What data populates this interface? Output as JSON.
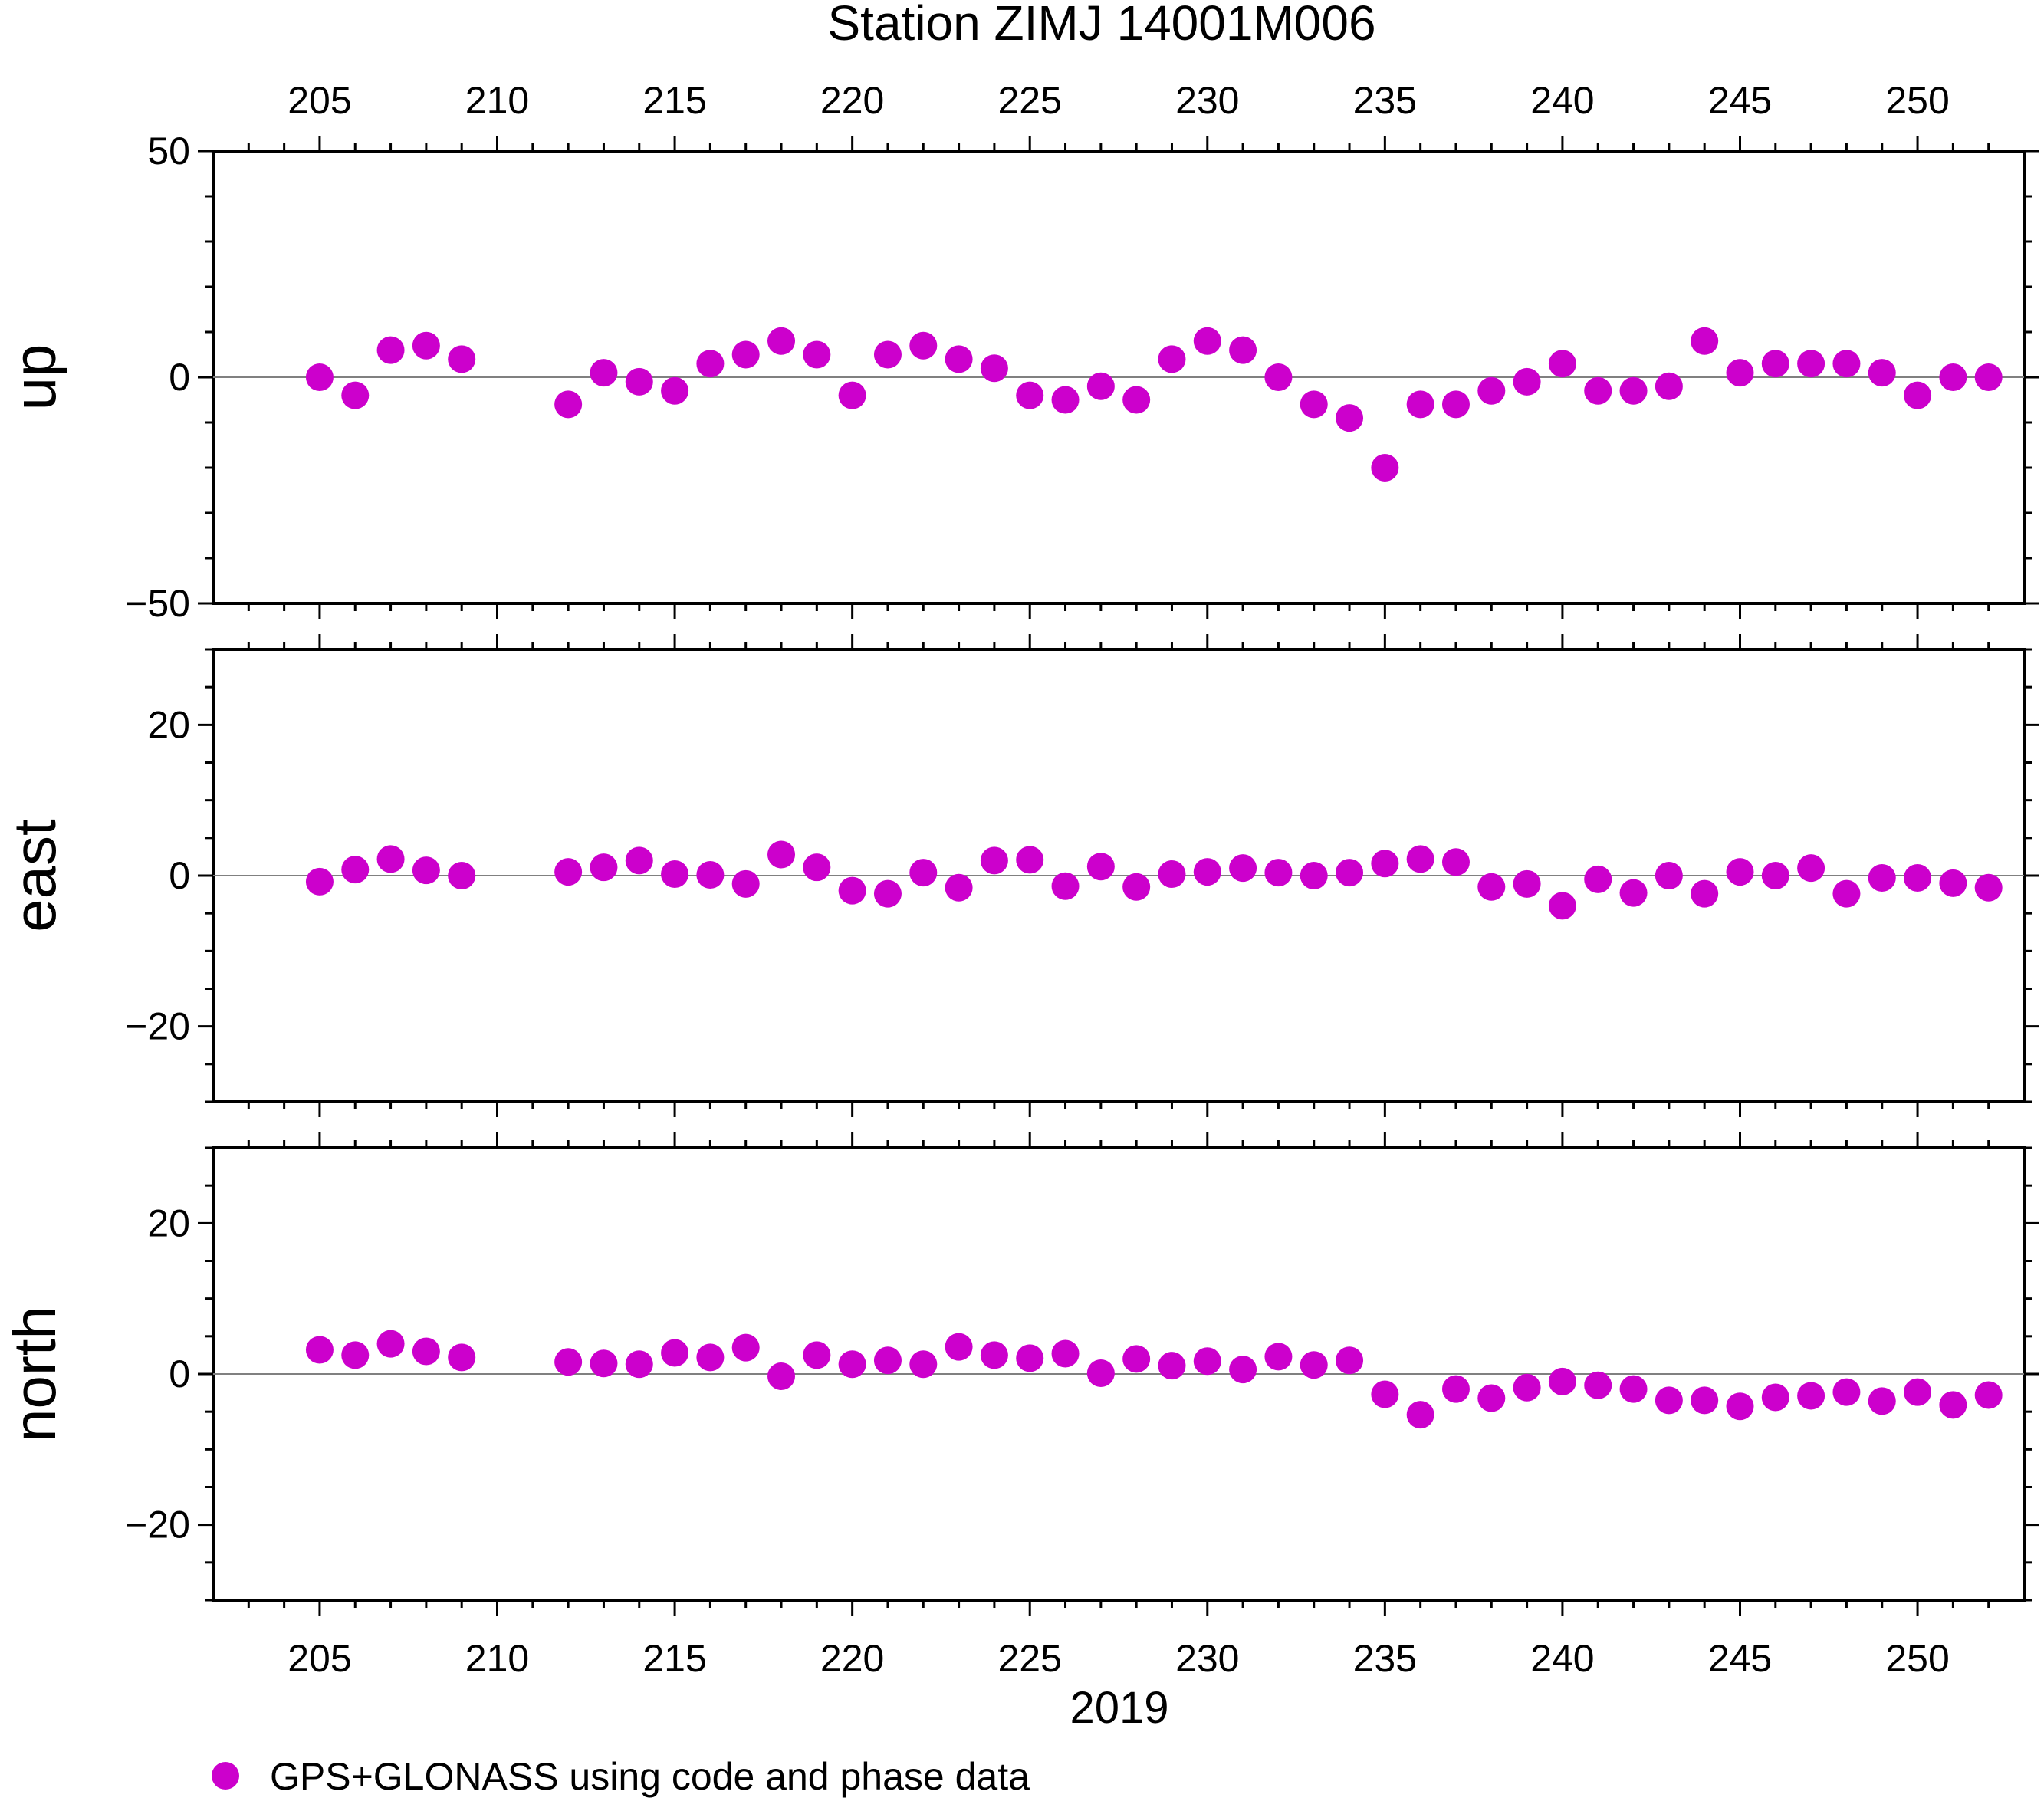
{
  "chart_data": {
    "type": "scatter",
    "title": "Station ZIMJ 14001M006",
    "xlabel": "2019",
    "x_ticks": [
      205,
      210,
      215,
      220,
      225,
      230,
      235,
      240,
      245,
      250
    ],
    "xlim": [
      202,
      253
    ],
    "marker_color": "#cc00cc",
    "legend": {
      "label": "GPS+GLONASS using code and phase data",
      "placement": "bottom-left"
    },
    "days": [
      205,
      206,
      207,
      208,
      209,
      212,
      213,
      214,
      215,
      216,
      217,
      218,
      219,
      220,
      221,
      222,
      223,
      224,
      225,
      226,
      227,
      228,
      229,
      230,
      231,
      232,
      233,
      234,
      235,
      236,
      237,
      238,
      239,
      240,
      241,
      242,
      243,
      244,
      245,
      246,
      247,
      248,
      249,
      250,
      251,
      252
    ],
    "panels": [
      {
        "name": "up",
        "ylabel": "up",
        "ylim": [
          -50,
          50
        ],
        "y_ticks": [
          -50,
          0,
          50
        ],
        "y_tick_labels": [
          "−50",
          "0",
          "50"
        ],
        "values": [
          0,
          -4,
          6,
          7,
          4,
          -6,
          1,
          -1,
          -3,
          3,
          5,
          8,
          5,
          -4,
          5,
          7,
          4,
          2,
          -4,
          -5,
          -2,
          -5,
          4,
          8,
          6,
          0,
          -6,
          -9,
          -20,
          -6,
          -6,
          -3,
          -1,
          3,
          -3,
          -3,
          -2,
          8,
          1,
          3,
          3,
          3,
          1,
          -4,
          0,
          0
        ]
      },
      {
        "name": "east",
        "ylabel": "east",
        "ylim": [
          -30,
          30
        ],
        "y_ticks": [
          -20,
          0,
          20
        ],
        "y_tick_labels": [
          "−20",
          "0",
          "20"
        ],
        "values": [
          -0.8,
          0.8,
          2.2,
          0.7,
          0,
          0.5,
          1.1,
          2,
          0.2,
          0.1,
          -1.1,
          2.8,
          1.1,
          -2,
          -2.4,
          0.4,
          -1.6,
          2,
          2.1,
          -1.4,
          1.2,
          -1.5,
          0.2,
          0.5,
          1,
          0.4,
          0,
          0.4,
          1.6,
          2.2,
          1.8,
          -1.5,
          -1.1,
          -4,
          -0.5,
          -2.3,
          0,
          -2.4,
          0.5,
          0,
          1,
          -2.4,
          -0.3,
          -0.3,
          -1,
          -1.6
        ]
      },
      {
        "name": "north",
        "ylabel": "north",
        "ylim": [
          -30,
          30
        ],
        "y_ticks": [
          -20,
          0,
          20
        ],
        "y_tick_labels": [
          "−20",
          "0",
          "20"
        ],
        "values": [
          3.2,
          2.5,
          4,
          3,
          2.2,
          1.6,
          1.4,
          1.3,
          2.8,
          2.2,
          3.5,
          -0.3,
          2.5,
          1.3,
          1.8,
          1.3,
          3.6,
          2.5,
          2.1,
          2.7,
          0.1,
          2,
          1.1,
          1.7,
          0.6,
          2.3,
          1.2,
          1.8,
          -2.7,
          -5.4,
          -2,
          -3.2,
          -1.8,
          -1,
          -1.5,
          -2,
          -3.5,
          -3.5,
          -4.3,
          -3.1,
          -2.9,
          -2.4,
          -3.6,
          -2.4,
          -4.1,
          -2.8
        ]
      }
    ]
  }
}
